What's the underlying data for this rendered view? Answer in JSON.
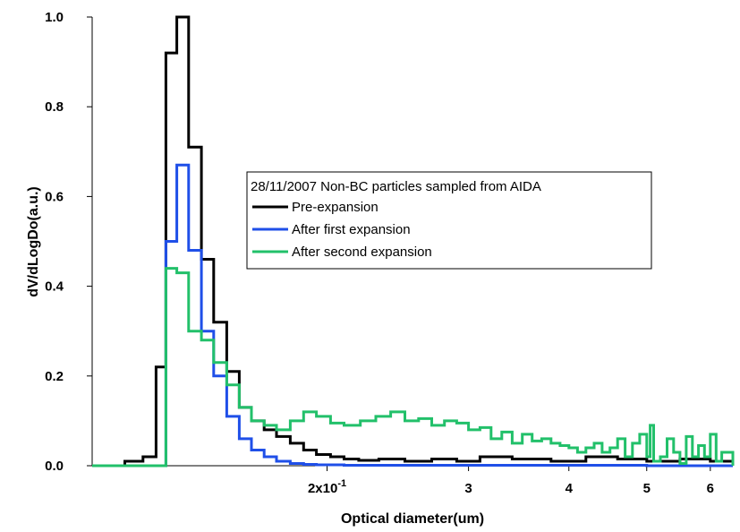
{
  "chart_data": {
    "type": "line",
    "title": "",
    "xlabel": "Optical diameter(um)",
    "ylabel": "dV/dLogDo(a.u.)",
    "x_scale": "log",
    "x_unit_note": "tick labels as printed",
    "xlim": [
      0.102,
      0.64
    ],
    "ylim": [
      0.0,
      1.0
    ],
    "grid": false,
    "x_ticks": [
      {
        "value": 0.2,
        "label": "2x10",
        "superscript": "-1"
      },
      {
        "value": 0.3,
        "label": "3"
      },
      {
        "value": 0.4,
        "label": "4"
      },
      {
        "value": 0.5,
        "label": "5"
      },
      {
        "value": 0.6,
        "label": "6"
      }
    ],
    "y_ticks": [
      {
        "value": 0.0,
        "label": "0.0"
      },
      {
        "value": 0.2,
        "label": "0.2"
      },
      {
        "value": 0.4,
        "label": "0.4"
      },
      {
        "value": 0.6,
        "label": "0.6"
      },
      {
        "value": 0.8,
        "label": "0.8"
      },
      {
        "value": 1.0,
        "label": "1.0"
      }
    ],
    "legend": {
      "title": "28/11/2007 Non-BC particles sampled from AIDA",
      "placement": "center-right"
    },
    "series": [
      {
        "name": "Pre-expansion",
        "color": "#000000",
        "x": [
          0.102,
          0.112,
          0.118,
          0.1225,
          0.126,
          0.13,
          0.1345,
          0.1395,
          0.1445,
          0.15,
          0.1555,
          0.161,
          0.167,
          0.173,
          0.18,
          0.187,
          0.194,
          0.202,
          0.21,
          0.219,
          0.232,
          0.25,
          0.27,
          0.29,
          0.31,
          0.34,
          0.38,
          0.42,
          0.46,
          0.5,
          0.55,
          0.6,
          0.64
        ],
        "y": [
          0.0,
          0.01,
          0.02,
          0.22,
          0.92,
          1.0,
          0.71,
          0.46,
          0.32,
          0.21,
          0.13,
          0.1,
          0.08,
          0.065,
          0.05,
          0.035,
          0.025,
          0.02,
          0.015,
          0.012,
          0.015,
          0.01,
          0.015,
          0.01,
          0.02,
          0.015,
          0.01,
          0.02,
          0.015,
          0.01,
          0.015,
          0.01,
          0.0
        ]
      },
      {
        "name": "After first expansion",
        "color": "#1f4fe8",
        "x": [
          0.102,
          0.126,
          0.13,
          0.1345,
          0.1395,
          0.1445,
          0.15,
          0.1555,
          0.161,
          0.167,
          0.173,
          0.18,
          0.187,
          0.194,
          0.21,
          0.25,
          0.3,
          0.4,
          0.5,
          0.6,
          0.64
        ],
        "y": [
          0.0,
          0.5,
          0.67,
          0.48,
          0.3,
          0.2,
          0.11,
          0.06,
          0.035,
          0.02,
          0.01,
          0.005,
          0.003,
          0.002,
          0.001,
          0.001,
          0.001,
          0.001,
          0.0,
          0.0,
          0.0
        ]
      },
      {
        "name": "After second expansion",
        "color": "#22c06a",
        "x": [
          0.102,
          0.126,
          0.13,
          0.1345,
          0.1395,
          0.1445,
          0.15,
          0.1555,
          0.161,
          0.167,
          0.173,
          0.18,
          0.187,
          0.194,
          0.202,
          0.21,
          0.22,
          0.23,
          0.24,
          0.25,
          0.26,
          0.27,
          0.28,
          0.29,
          0.3,
          0.31,
          0.32,
          0.33,
          0.34,
          0.35,
          0.36,
          0.37,
          0.38,
          0.39,
          0.4,
          0.41,
          0.42,
          0.43,
          0.44,
          0.45,
          0.46,
          0.47,
          0.48,
          0.49,
          0.5,
          0.505,
          0.51,
          0.52,
          0.53,
          0.54,
          0.55,
          0.56,
          0.57,
          0.58,
          0.59,
          0.6,
          0.61,
          0.62,
          0.63,
          0.64
        ],
        "y": [
          0.0,
          0.44,
          0.43,
          0.3,
          0.28,
          0.23,
          0.18,
          0.13,
          0.1,
          0.09,
          0.08,
          0.1,
          0.12,
          0.11,
          0.095,
          0.09,
          0.1,
          0.11,
          0.12,
          0.1,
          0.105,
          0.09,
          0.1,
          0.095,
          0.08,
          0.085,
          0.06,
          0.075,
          0.05,
          0.07,
          0.055,
          0.06,
          0.05,
          0.045,
          0.04,
          0.03,
          0.04,
          0.05,
          0.03,
          0.04,
          0.06,
          0.02,
          0.05,
          0.07,
          0.02,
          0.09,
          0.01,
          0.02,
          0.06,
          0.03,
          0.005,
          0.065,
          0.02,
          0.045,
          0.02,
          0.07,
          0.01,
          0.03,
          0.03,
          0.0
        ]
      }
    ]
  }
}
